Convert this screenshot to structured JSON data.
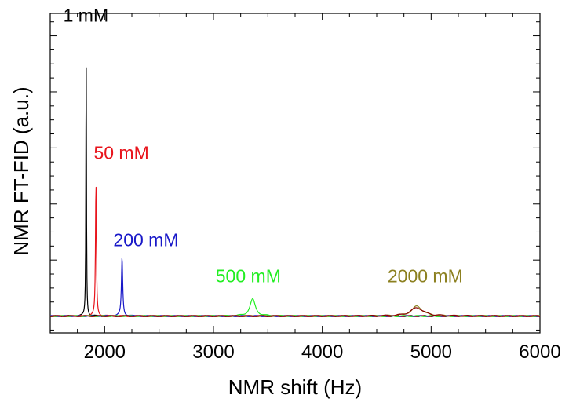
{
  "chart_data": {
    "type": "line",
    "title": "",
    "xlabel": "NMR shift (Hz)",
    "ylabel": "NMR FT-FID (a.u.)",
    "xlim": [
      1500,
      6000
    ],
    "ylim": [
      -0.06,
      1.08
    ],
    "xticks": [
      2000,
      3000,
      4000,
      5000,
      6000
    ],
    "y_tick_labels_shown": false,
    "grid": false,
    "legend": "none (series labeled inline next to peaks)",
    "series": [
      {
        "name": "1 mM",
        "color": "#000000",
        "peak_x": 1830,
        "peak_y": 1.0,
        "width": 6,
        "label_x": 1620,
        "label_y": 1.05
      },
      {
        "name": "50 mM",
        "color": "#e8141c",
        "peak_x": 1920,
        "peak_y": 0.48,
        "width": 10,
        "label_x": 1900,
        "label_y": 0.56
      },
      {
        "name": "200 mM",
        "color": "#1818c8",
        "peak_x": 2160,
        "peak_y": 0.21,
        "width": 14,
        "label_x": 2080,
        "label_y": 0.25
      },
      {
        "name": "500 mM",
        "color": "#22ee22",
        "peak_x": 3360,
        "peak_y": 0.06,
        "width": 60,
        "label_x": 3020,
        "label_y": 0.12
      },
      {
        "name": "2000 mM",
        "color": "#8c8020",
        "peak_x": 4870,
        "peak_y": 0.035,
        "width": 120,
        "label_x": 4600,
        "label_y": 0.12
      },
      {
        "name": "",
        "color": "#880000",
        "peak_x": 4870,
        "peak_y": 0.03,
        "width": 140,
        "label_x": null,
        "label_y": null
      }
    ]
  }
}
